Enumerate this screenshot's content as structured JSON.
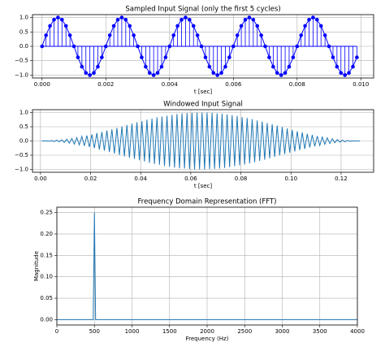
{
  "chart_data": [
    {
      "type": "stem",
      "title": "Sampled Input Signal (only the first 5 cycles)",
      "xlabel": "t [sec]",
      "color": "#0000ff",
      "grid": true,
      "x": [
        0,
        0.000125,
        0.00025,
        0.000375,
        0.0005,
        0.000625,
        0.00075,
        0.000875,
        0.001,
        0.001125,
        0.00125,
        0.001375,
        0.0015,
        0.001625,
        0.00175,
        0.001875,
        0.002,
        0.002125,
        0.00225,
        0.002375,
        0.0025,
        0.002625,
        0.00275,
        0.002875,
        0.003,
        0.003125,
        0.00325,
        0.003375,
        0.0035,
        0.003625,
        0.00375,
        0.003875,
        0.004,
        0.004125,
        0.00425,
        0.004375,
        0.0045,
        0.004625,
        0.00475,
        0.004875,
        0.005,
        0.005125,
        0.00525,
        0.005375,
        0.0055,
        0.005625,
        0.00575,
        0.005875,
        0.006,
        0.006125,
        0.00625,
        0.006375,
        0.0065,
        0.006625,
        0.00675,
        0.006875,
        0.007,
        0.007125,
        0.00725,
        0.007375,
        0.0075,
        0.007625,
        0.00775,
        0.007875,
        0.008,
        0.008125,
        0.00825,
        0.008375,
        0.0085,
        0.008625,
        0.00875,
        0.008875,
        0.009,
        0.009125,
        0.00925,
        0.009375,
        0.0095,
        0.009625,
        0.00975,
        0.009875
      ],
      "values": [
        0,
        0.383,
        0.707,
        0.924,
        1,
        0.924,
        0.707,
        0.383,
        0,
        -0.383,
        -0.707,
        -0.924,
        -1,
        -0.924,
        -0.707,
        -0.383,
        0,
        0.383,
        0.707,
        0.924,
        1,
        0.924,
        0.707,
        0.383,
        0,
        -0.383,
        -0.707,
        -0.924,
        -1,
        -0.924,
        -0.707,
        -0.383,
        0,
        0.383,
        0.707,
        0.924,
        1,
        0.924,
        0.707,
        0.383,
        0,
        -0.383,
        -0.707,
        -0.924,
        -1,
        -0.924,
        -0.707,
        -0.383,
        0,
        0.383,
        0.707,
        0.924,
        1,
        0.924,
        0.707,
        0.383,
        0,
        -0.383,
        -0.707,
        -0.924,
        -1,
        -0.924,
        -0.707,
        -0.383,
        0,
        0.383,
        0.707,
        0.924,
        1,
        0.924,
        0.707,
        0.383,
        0,
        -0.383,
        -0.707,
        -0.924,
        -1,
        -0.924,
        -0.707,
        -0.383
      ],
      "xlim": [
        -0.0003,
        0.0104
      ],
      "ylim": [
        -1.1,
        1.1
      ],
      "xticks": [
        {
          "value": 0,
          "label": "0.000"
        },
        {
          "value": 0.002,
          "label": "0.002"
        },
        {
          "value": 0.004,
          "label": "0.004"
        },
        {
          "value": 0.006,
          "label": "0.006"
        },
        {
          "value": 0.008,
          "label": "0.008"
        },
        {
          "value": 0.01,
          "label": "0.010"
        }
      ],
      "yticks": [
        {
          "value": -1,
          "label": "−1.0"
        },
        {
          "value": -0.5,
          "label": "−0.5"
        },
        {
          "value": 0,
          "label": "0.0"
        },
        {
          "value": 0.5,
          "label": "0.5"
        },
        {
          "value": 1,
          "label": "1.0"
        }
      ]
    },
    {
      "type": "line",
      "title": "Windowed Input Signal",
      "xlabel": "t [sec]",
      "color": "#1f77b4",
      "grid": true,
      "x": [
        0.0005,
        0.0015,
        0.0025,
        0.0035,
        0.0045,
        0.0055,
        0.0065,
        0.0075,
        0.0085,
        0.0095,
        0.0105,
        0.0115,
        0.0125,
        0.0135,
        0.0145,
        0.0155,
        0.0165,
        0.0175,
        0.0185,
        0.0195,
        0.0205,
        0.0215,
        0.0225,
        0.0235,
        0.0245,
        0.0255,
        0.0265,
        0.0275,
        0.0285,
        0.0295,
        0.0305,
        0.0315,
        0.0325,
        0.0335,
        0.0345,
        0.0355,
        0.0365,
        0.0375,
        0.0385,
        0.0395,
        0.0405,
        0.0415,
        0.0425,
        0.0435,
        0.0445,
        0.0455,
        0.0465,
        0.0475,
        0.0485,
        0.0495,
        0.0505,
        0.0515,
        0.0525,
        0.0535,
        0.0545,
        0.0555,
        0.0565,
        0.0575,
        0.0585,
        0.0595,
        0.0605,
        0.0615,
        0.0625,
        0.0635,
        0.0645,
        0.0655,
        0.0665,
        0.0675,
        0.0685,
        0.0695,
        0.0705,
        0.0715,
        0.0725,
        0.0735,
        0.0745,
        0.0755,
        0.0765,
        0.0775,
        0.0785,
        0.0795,
        0.0805,
        0.0815,
        0.0825,
        0.0835,
        0.0845,
        0.0855,
        0.0865,
        0.0875,
        0.0885,
        0.0895,
        0.0905,
        0.0915,
        0.0925,
        0.0935,
        0.0945,
        0.0955,
        0.0965,
        0.0975,
        0.0985,
        0.0995,
        0.1005,
        0.1015,
        0.1025,
        0.1035,
        0.1045,
        0.1055,
        0.1065,
        0.1075,
        0.1085,
        0.1095,
        0.1105,
        0.1115,
        0.1125,
        0.1135,
        0.1145,
        0.1155,
        0.1165,
        0.1175,
        0.1185,
        0.1195,
        0.1205,
        0.1215,
        0.1225,
        0.1235,
        0.1245,
        0.1255,
        0.1265,
        0.1275
      ],
      "values": [
        0.0,
        -0.001,
        0.004,
        -0.007,
        0.012,
        -0.02,
        0.03,
        -0.03,
        0.04,
        -0.05,
        0.06,
        -0.08,
        0.09,
        -0.11,
        0.12,
        -0.14,
        0.16,
        -0.17,
        0.19,
        -0.21,
        0.23,
        -0.25,
        0.28,
        -0.3,
        0.32,
        -0.34,
        0.37,
        -0.39,
        0.41,
        -0.44,
        0.46,
        -0.49,
        0.51,
        -0.54,
        0.56,
        -0.59,
        0.61,
        -0.63,
        0.66,
        -0.68,
        0.7,
        -0.72,
        0.75,
        -0.77,
        0.79,
        -0.81,
        0.83,
        -0.84,
        0.86,
        -0.88,
        0.89,
        -0.91,
        0.92,
        -0.94,
        0.95,
        -0.96,
        0.97,
        -0.97,
        0.98,
        -0.99,
        0.99,
        -1.0,
        1.0,
        -1.0,
        1.0,
        -1.0,
        1.0,
        -0.99,
        0.99,
        -0.98,
        0.97,
        -0.97,
        0.96,
        -0.95,
        0.94,
        -0.92,
        0.91,
        -0.89,
        0.88,
        -0.86,
        0.84,
        -0.83,
        0.81,
        -0.79,
        0.77,
        -0.75,
        0.72,
        -0.7,
        0.68,
        -0.66,
        0.63,
        -0.61,
        0.59,
        -0.56,
        0.54,
        -0.51,
        0.49,
        -0.46,
        0.44,
        -0.41,
        0.39,
        -0.37,
        0.34,
        -0.32,
        0.3,
        -0.28,
        0.25,
        -0.23,
        0.21,
        -0.19,
        0.17,
        -0.16,
        0.14,
        -0.12,
        0.11,
        -0.09,
        0.08,
        -0.06,
        0.05,
        -0.04,
        0.03,
        -0.03,
        0.02,
        -0.012,
        0.007,
        -0.004,
        0.001,
        0.0
      ],
      "xlim": [
        -0.0032,
        0.133
      ],
      "ylim": [
        -1.1,
        1.1
      ],
      "xticks": [
        {
          "value": 0,
          "label": "0.00"
        },
        {
          "value": 0.02,
          "label": "0.02"
        },
        {
          "value": 0.04,
          "label": "0.04"
        },
        {
          "value": 0.06,
          "label": "0.06"
        },
        {
          "value": 0.08,
          "label": "0.08"
        },
        {
          "value": 0.1,
          "label": "0.10"
        },
        {
          "value": 0.12,
          "label": "0.12"
        }
      ],
      "yticks": [
        {
          "value": -1,
          "label": "−1.0"
        },
        {
          "value": -0.5,
          "label": "−0.5"
        },
        {
          "value": 0,
          "label": "0.0"
        },
        {
          "value": 0.5,
          "label": "0.5"
        },
        {
          "value": 1,
          "label": "1.0"
        }
      ]
    },
    {
      "type": "line",
      "title": "Frequency Domain Representation (FFT)",
      "xlabel": "Frequency (Hz)",
      "ylabel": "Magnitude",
      "color": "#1f77b4",
      "grid": true,
      "x": [
        0,
        484.375,
        492.1875,
        500,
        507.8125,
        515.625,
        4000
      ],
      "values": [
        0,
        0,
        0.125,
        0.25,
        0.125,
        0,
        0
      ],
      "xlim": [
        0,
        4000
      ],
      "ylim": [
        -0.0125,
        0.2625
      ],
      "xticks": [
        0,
        500,
        1000,
        1500,
        2000,
        2500,
        3000,
        3500,
        4000
      ],
      "yticks": [
        {
          "value": 0,
          "label": "0.00"
        },
        {
          "value": 0.05,
          "label": "0.05"
        },
        {
          "value": 0.1,
          "label": "0.10"
        },
        {
          "value": 0.15,
          "label": "0.15"
        },
        {
          "value": 0.2,
          "label": "0.20"
        },
        {
          "value": 0.25,
          "label": "0.25"
        }
      ]
    }
  ]
}
